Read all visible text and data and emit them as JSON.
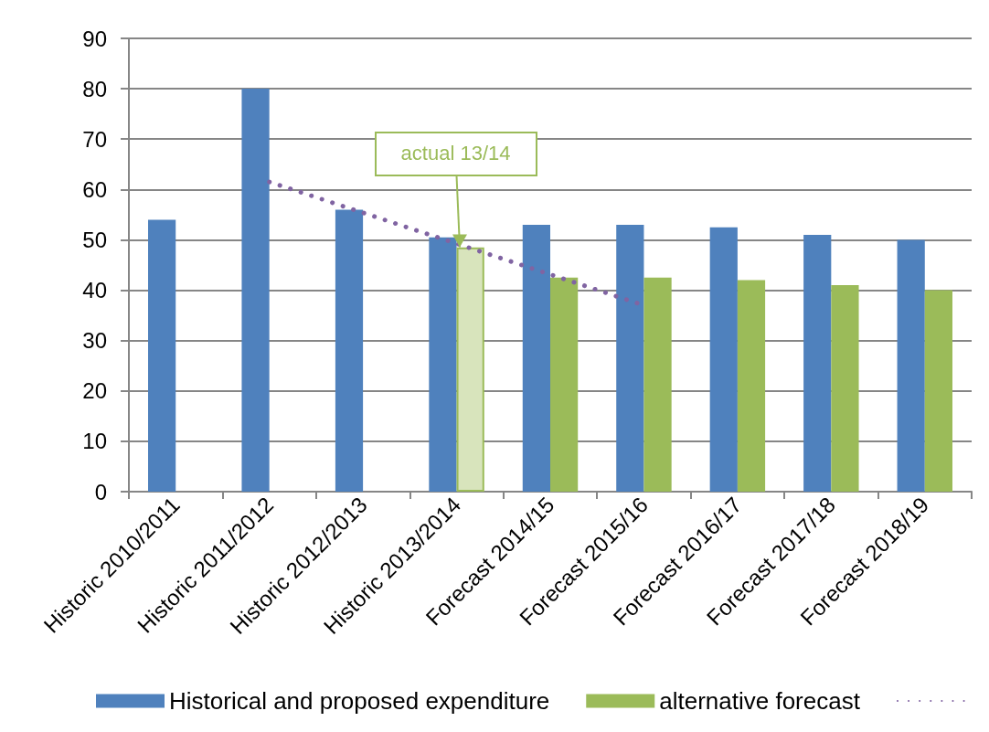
{
  "chart_data": {
    "type": "bar",
    "categories": [
      "Historic 2010/2011",
      "Historic 2011/2012",
      "Historic 2012/2013",
      "Historic 2013/2014",
      "Forecast 2014/15",
      "Forecast 2015/16",
      "Forecast 2016/17",
      "Forecast 2017/18",
      "Forecast 2018/19"
    ],
    "series": [
      {
        "name": "Historical and proposed expenditure",
        "color": "#4f81bd",
        "values": [
          54,
          80,
          56,
          50.5,
          53,
          53,
          52.5,
          51,
          50
        ]
      },
      {
        "name": "alternative forecast",
        "color": "#9bbb59",
        "values": [
          null,
          null,
          null,
          48.5,
          42.5,
          42.5,
          42,
          41,
          40
        ],
        "colors": [
          "#9bbb59",
          "#9bbb59",
          "#9bbb59",
          "#d8e4bc",
          "#9bbb59",
          "#9bbb59",
          "#9bbb59",
          "#9bbb59",
          "#9bbb59"
        ]
      },
      {
        "type": "line",
        "color": "#8064a2",
        "x": [
          "Historic 2011/2012",
          "Forecast 2015/16"
        ],
        "values": [
          61.5,
          37
        ]
      }
    ],
    "ylim": [
      0,
      90
    ],
    "yticks": [
      0,
      10,
      20,
      30,
      40,
      50,
      60,
      70,
      80,
      90
    ],
    "grid": "y",
    "legend": "bottom",
    "line_style": "dotted",
    "marker": "none",
    "annotations": [
      {
        "text": "actual 13/14",
        "x": "Historic 2013/2014",
        "y": 48.5
      }
    ]
  }
}
